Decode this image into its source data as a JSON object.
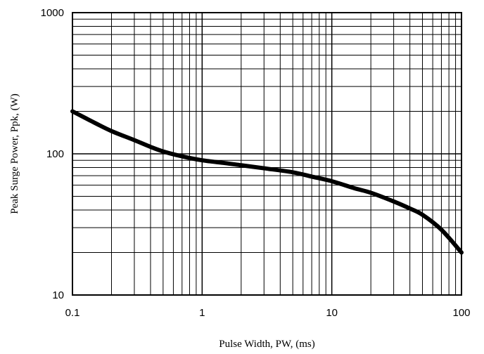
{
  "chart_data": {
    "type": "line",
    "title": "",
    "xlabel": "Pulse Width, PW, (ms)",
    "ylabel": "Peak Surge Power, Ppk, (W)",
    "x_scale": "log",
    "y_scale": "log",
    "xlim": [
      0.1,
      100
    ],
    "ylim": [
      10,
      1000
    ],
    "x_ticks": [
      0.1,
      1,
      10,
      100
    ],
    "x_tick_labels": [
      "0.1",
      "1",
      "10",
      "100"
    ],
    "y_ticks": [
      10,
      100,
      1000
    ],
    "y_tick_labels": [
      "10",
      "100",
      "1000"
    ],
    "grid": true,
    "legend": "none",
    "series": [
      {
        "x": [
          0.1,
          0.15,
          0.2,
          0.3,
          0.4,
          0.5,
          0.7,
          1,
          1.5,
          2,
          3,
          5,
          7,
          10,
          15,
          20,
          30,
          40,
          50,
          70,
          100
        ],
        "y": [
          200,
          165,
          145,
          125,
          112,
          104,
          96,
          90,
          86,
          83,
          79,
          74,
          69,
          64,
          57,
          53,
          46,
          41,
          37,
          29,
          20
        ],
        "color": "#000000"
      }
    ]
  }
}
